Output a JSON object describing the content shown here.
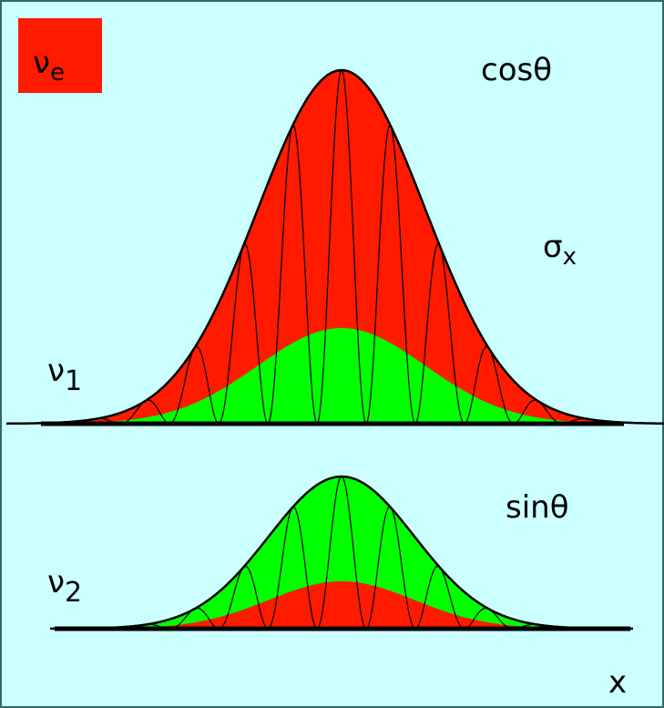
{
  "labels": {
    "nu_e": {
      "symbol": "ν",
      "subscript": "e"
    },
    "cos": "cosθ",
    "sigma": {
      "symbol": "σ",
      "subscript": "x"
    },
    "nu_1": {
      "symbol": "ν",
      "subscript": "1"
    },
    "nu_2": {
      "symbol": "ν",
      "subscript": "2"
    },
    "sin": "sinθ",
    "x_axis": "x"
  }
}
